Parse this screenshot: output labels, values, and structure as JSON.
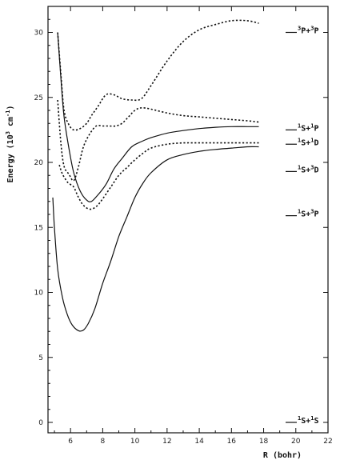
{
  "chart_data": {
    "type": "line",
    "xlabel": "R (bohr)",
    "ylabel_text": "Energy (10",
    "ylabel_sup": "3",
    "ylabel_unit": " cm",
    "ylabel_unit_sup": "-1",
    "ylabel_close": ")",
    "xlim": [
      4.6,
      22
    ],
    "ylim": [
      -0.8,
      32
    ],
    "x_ticks": [
      6,
      8,
      10,
      12,
      14,
      16,
      18,
      20,
      22
    ],
    "y_ticks": [
      0,
      5,
      10,
      15,
      20,
      25,
      30
    ],
    "grid": false,
    "series": [
      {
        "style": "solid",
        "x": [
          4.9,
          5.0,
          5.2,
          5.5,
          5.8,
          6.1,
          6.5,
          6.8,
          7.1,
          7.5,
          8.0,
          8.5,
          9.0,
          9.5,
          10.0,
          10.5,
          11.0,
          12.0,
          13.0,
          14.0,
          15.0,
          16.0,
          17.0,
          17.7
        ],
        "y": [
          17.3,
          15.0,
          11.8,
          9.6,
          8.3,
          7.5,
          7.05,
          7.1,
          7.6,
          8.7,
          10.7,
          12.4,
          14.3,
          15.8,
          17.3,
          18.4,
          19.2,
          20.2,
          20.6,
          20.85,
          21.0,
          21.1,
          21.2,
          21.2
        ]
      },
      {
        "style": "solid",
        "x": [
          5.2,
          5.4,
          5.6,
          5.9,
          6.2,
          6.6,
          7.0,
          7.3,
          7.7,
          8.2,
          8.7,
          9.2,
          9.8,
          10.4,
          11.0,
          12.0,
          13.0,
          14.0,
          15.0,
          16.0,
          17.0,
          17.7
        ],
        "y": [
          30.0,
          26.5,
          23.5,
          21.1,
          19.2,
          17.8,
          17.1,
          17.0,
          17.5,
          18.3,
          19.5,
          20.3,
          21.2,
          21.6,
          21.9,
          22.25,
          22.45,
          22.6,
          22.7,
          22.75,
          22.75,
          22.75
        ]
      },
      {
        "style": "dotted",
        "x": [
          5.2,
          5.4,
          5.6,
          5.9,
          6.2,
          6.6,
          7.0,
          7.3,
          7.7,
          8.2,
          8.7,
          9.2,
          9.8,
          10.4,
          11.0,
          12.0,
          13.0,
          14.0,
          15.0,
          16.0,
          17.0,
          17.7
        ],
        "y": [
          30.0,
          26.8,
          24.0,
          22.9,
          22.5,
          22.6,
          23.0,
          23.6,
          24.3,
          25.2,
          25.2,
          24.9,
          24.8,
          24.9,
          25.9,
          27.8,
          29.3,
          30.2,
          30.6,
          30.9,
          30.9,
          30.7
        ]
      },
      {
        "style": "dotted",
        "x": [
          5.2,
          5.4,
          5.6,
          5.9,
          6.2,
          6.5,
          6.8,
          7.2,
          7.6,
          8.0,
          8.4,
          8.8,
          9.2,
          9.6,
          10.0,
          10.4,
          11.0,
          12.0,
          13.0,
          14.0,
          15.0,
          16.0,
          17.0,
          17.7
        ],
        "y": [
          24.8,
          21.5,
          19.7,
          19.1,
          18.6,
          19.7,
          21.2,
          22.2,
          22.8,
          22.8,
          22.8,
          22.8,
          23.0,
          23.5,
          24.0,
          24.2,
          24.1,
          23.8,
          23.6,
          23.5,
          23.4,
          23.3,
          23.2,
          23.1
        ]
      },
      {
        "style": "dotted",
        "x": [
          5.3,
          5.5,
          5.8,
          6.0,
          6.2,
          6.5,
          6.8,
          7.2,
          7.6,
          8.0,
          8.5,
          9.0,
          9.5,
          10.0,
          10.5,
          11.0,
          12.0,
          13.0,
          14.0,
          15.0,
          16.0,
          17.0,
          17.7
        ],
        "y": [
          19.8,
          19.1,
          18.5,
          18.3,
          18.1,
          17.3,
          16.7,
          16.4,
          16.6,
          17.2,
          18.1,
          19.0,
          19.6,
          20.2,
          20.7,
          21.1,
          21.4,
          21.5,
          21.5,
          21.5,
          21.5,
          21.5,
          21.5
        ]
      }
    ],
    "levels": [
      {
        "sup1": "3",
        "a": "P+",
        "sup2": "3",
        "b": "P",
        "y": 30.0
      },
      {
        "sup1": "1",
        "a": "S+",
        "sup2": "1",
        "b": "P",
        "y": 22.5
      },
      {
        "sup1": "1",
        "a": "S+",
        "sup2": "1",
        "b": "D",
        "y": 21.4
      },
      {
        "sup1": "1",
        "a": "S+",
        "sup2": "3",
        "b": "D",
        "y": 19.3
      },
      {
        "sup1": "1",
        "a": "S+",
        "sup2": "3",
        "b": "P",
        "y": 15.9
      },
      {
        "sup1": "1",
        "a": "S+",
        "sup2": "1",
        "b": "S",
        "y": 0.0
      }
    ]
  }
}
